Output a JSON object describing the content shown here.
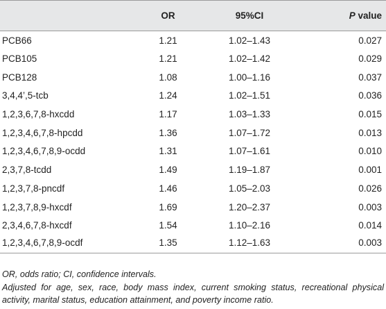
{
  "table": {
    "headers": {
      "name": "",
      "or": "OR",
      "ci": "95%CI",
      "p_italic": "P",
      "p_rest": " value"
    },
    "rows": [
      {
        "name": "PCB66",
        "or": "1.21",
        "ci": "1.02–1.43",
        "p": "0.027"
      },
      {
        "name": "PCB105",
        "or": "1.21",
        "ci": "1.02–1.42",
        "p": "0.029"
      },
      {
        "name": "PCB128",
        "or": "1.08",
        "ci": "1.00–1.16",
        "p": "0.037"
      },
      {
        "name": "3,4,4’,5-tcb",
        "or": "1.24",
        "ci": "1.02–1.51",
        "p": "0.036"
      },
      {
        "name": "1,2,3,6,7,8-hxcdd",
        "or": "1.17",
        "ci": "1.03–1.33",
        "p": "0.015"
      },
      {
        "name": "1,2,3,4,6,7,8-hpcdd",
        "or": "1.36",
        "ci": "1.07–1.72",
        "p": "0.013"
      },
      {
        "name": "1,2,3,4,6,7,8,9-ocdd",
        "or": "1.31",
        "ci": "1.07–1.61",
        "p": "0.010"
      },
      {
        "name": "2,3,7,8-tcdd",
        "or": "1.49",
        "ci": "1.19–1.87",
        "p": "0.001"
      },
      {
        "name": "1,2,3,7,8-pncdf",
        "or": "1.46",
        "ci": "1.05–2.03",
        "p": "0.026"
      },
      {
        "name": "1,2,3,7,8,9-hxcdf",
        "or": "1.69",
        "ci": "1.20–2.37",
        "p": "0.003"
      },
      {
        "name": "2,3,4,6,7,8-hxcdf",
        "or": "1.54",
        "ci": "1.10–2.16",
        "p": "0.014"
      },
      {
        "name": "1,2,3,4,6,7,8,9-ocdf",
        "or": "1.35",
        "ci": "1.12–1.63",
        "p": "0.003"
      }
    ]
  },
  "notes": {
    "abbreviations": "OR, odds ratio; CI, confidence intervals.",
    "adjustment": "Adjusted for age, sex, race, body mass index, current smoking status, recreational physical activity, marital status, education attainment, and poverty income ratio."
  },
  "colors": {
    "header_background": "#e6e7e8",
    "text": "#222222",
    "rule": "#9a9a9a"
  }
}
